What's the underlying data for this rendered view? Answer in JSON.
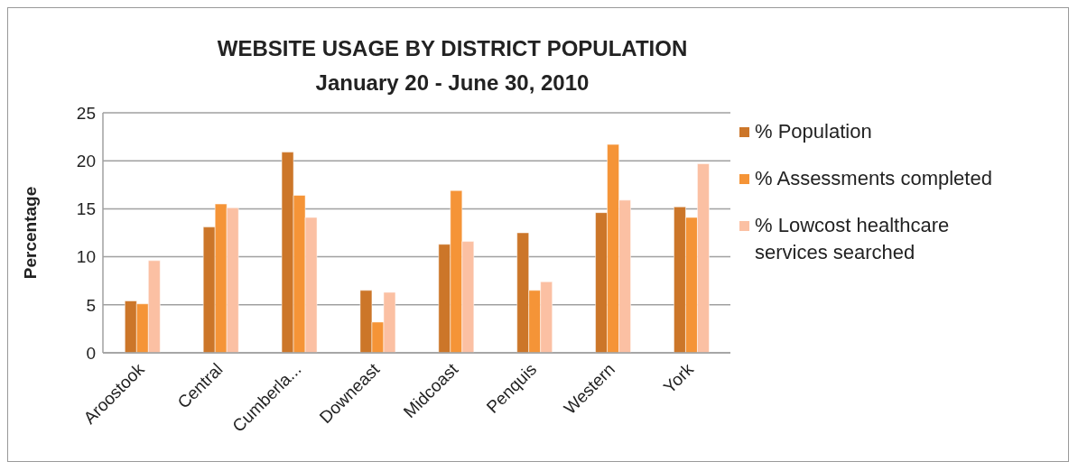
{
  "chart_data": {
    "type": "bar",
    "title": "WEBSITE USAGE  BY DISTRICT POPULATION",
    "subtitle": "January 20 - June 30, 2010",
    "ylabel": "Percentage",
    "categories": [
      "Aroostook",
      "Central",
      "Cumberla...",
      "Downeast",
      "Midcoast",
      "Penquis",
      "Western",
      "York"
    ],
    "series": [
      {
        "name": "% Population",
        "color": "#cc7629",
        "values": [
          5.4,
          13.1,
          20.9,
          6.5,
          11.3,
          12.5,
          14.6,
          15.2
        ]
      },
      {
        "name": "% Assessments completed",
        "color": "#f59437",
        "values": [
          5.1,
          15.5,
          16.4,
          3.2,
          16.9,
          6.5,
          21.7,
          14.1
        ]
      },
      {
        "name": "% Lowcost healthcare services searched",
        "color": "#fbc0a3",
        "values": [
          9.6,
          15.1,
          14.1,
          6.3,
          11.6,
          7.4,
          15.9,
          19.7
        ]
      }
    ],
    "ylim": [
      0,
      25
    ],
    "yticks": [
      0,
      5,
      10,
      15,
      20,
      25
    ],
    "grid": "y",
    "legend": "right"
  }
}
